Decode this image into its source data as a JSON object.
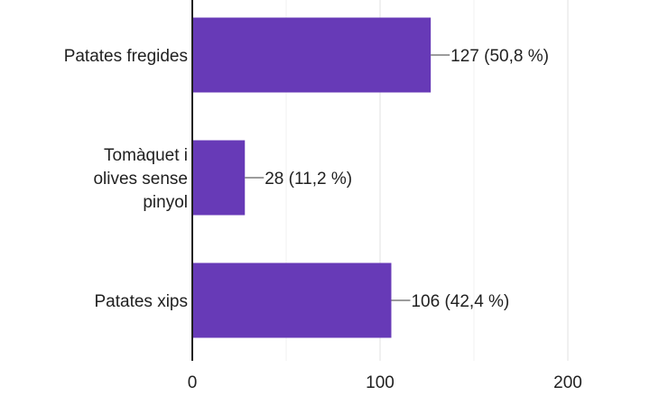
{
  "chart_data": {
    "type": "bar",
    "orientation": "horizontal",
    "categories": [
      "Patates fregides",
      "Tomàquet i olives sense pinyol",
      "Patates xips"
    ],
    "category_lines": [
      [
        "Patates fregides"
      ],
      [
        "Tomàquet i",
        "olives sense",
        "pinyol"
      ],
      [
        "Patates xips"
      ]
    ],
    "values": [
      127,
      28,
      106
    ],
    "data_labels": [
      "127 (50,8 %)",
      "28 (11,2 %)",
      "106 (42,4 %)"
    ],
    "xlim": [
      0,
      200
    ],
    "x_ticks": [
      0,
      100,
      200
    ],
    "x_tick_labels": [
      "0",
      "100",
      "200"
    ],
    "grid": true,
    "bar_color": "#673ab7",
    "grid_color": "#e0e0e0",
    "axis_color": "#212121",
    "leader_color": "#616161",
    "text_color": "#212121"
  }
}
